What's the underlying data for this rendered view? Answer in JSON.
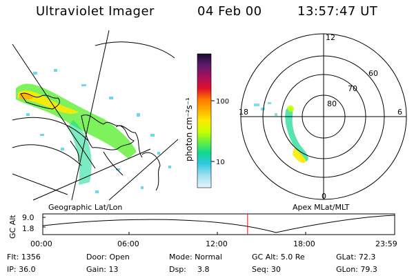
{
  "header": {
    "title": "Ultraviolet Imager",
    "date": "04 Feb 00",
    "time": "13:57:47 UT"
  },
  "left_panel": {
    "label": "Geographic Lat/Lon"
  },
  "right_panel": {
    "label": "Apex  MLat/MLT",
    "lat_labels": [
      "80",
      "70",
      "60"
    ],
    "mlt_labels": [
      "12",
      "18",
      "6",
      "0"
    ]
  },
  "colorbar": {
    "unit_label": "photon cm⁻²s⁻¹",
    "tick_labels": [
      "100",
      "10"
    ],
    "colors": [
      "#1a0a2e",
      "#5a1a6a",
      "#a01060",
      "#e0102a",
      "#ff7700",
      "#ffb000",
      "#ffea00",
      "#c8ff00",
      "#66f040",
      "#10d890",
      "#30c8e0",
      "#a0e0f0",
      "#e8f4fa"
    ]
  },
  "orbit_strip": {
    "axis_label": "GC Alt",
    "y_ticks": [
      "9.0",
      "1.8"
    ],
    "time_ticks": [
      "00:00",
      "06:00",
      "12:00",
      "18:00",
      "23:59"
    ],
    "current_time_fraction": 0.582,
    "marker_color": "#ff0000"
  },
  "status": {
    "flt": "Flt: 1356",
    "door": "Door: Open",
    "mode": "Mode: Normal",
    "gc_alt": "GC Alt: 5.0 Re",
    "glat": "GLat: 72.3",
    "ip": "IP: 36.0",
    "gain": "Gain: 13",
    "dsp_label": "Dsp:",
    "dsp_value": "3.8",
    "seq": "Seq: 30",
    "glon": "GLon: 79.3"
  }
}
